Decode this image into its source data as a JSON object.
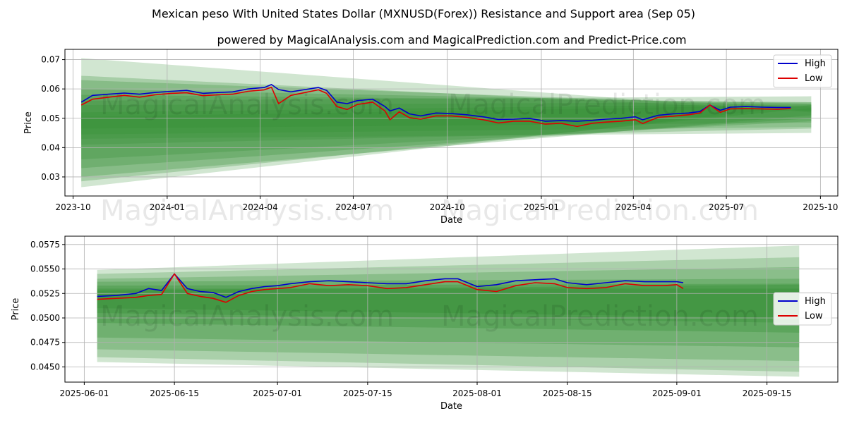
{
  "title": "Mexican peso With United States Dollar (MXNUSD(Forex)) Resistance and Support area (Sep 05)",
  "subtitle": "powered by MagicalAnalysis.com and MagicalPrediction.com and Predict-Price.com",
  "watermarks": [
    "MagicalAnalysis.com",
    "MagicalPrediction.com"
  ],
  "colors": {
    "high": "#0000cc",
    "low": "#dd0000",
    "band": "#2e8b2e",
    "grid": "#b0b0b0"
  },
  "chart_data": [
    {
      "type": "line",
      "xlabel": "Date",
      "ylabel": "Price",
      "xlim": [
        "2023-09-23",
        "2025-10-18"
      ],
      "ylim": [
        0.0235,
        0.0735
      ],
      "x_ticks": [
        "2023-10-01",
        "2024-01-01",
        "2024-04-01",
        "2024-07-01",
        "2024-10-01",
        "2025-01-01",
        "2025-04-01",
        "2025-07-01",
        "2025-10-01"
      ],
      "x_tick_labels": [
        "2023-10",
        "2024-01",
        "2024-04",
        "2024-07",
        "2024-10",
        "2025-01",
        "2025-04",
        "2025-07",
        "2025-10"
      ],
      "y_ticks": [
        0.03,
        0.04,
        0.05,
        0.06,
        0.07
      ],
      "y_tick_labels": [
        "0.03",
        "0.04",
        "0.05",
        "0.06",
        "0.07"
      ],
      "grid": true,
      "legend": "top-right",
      "series": [
        {
          "name": "High",
          "x": [
            "2023-10-09",
            "2023-10-20",
            "2023-11-05",
            "2023-11-20",
            "2023-12-05",
            "2023-12-20",
            "2024-01-05",
            "2024-01-20",
            "2024-02-05",
            "2024-02-20",
            "2024-03-05",
            "2024-03-20",
            "2024-04-05",
            "2024-04-12",
            "2024-04-19",
            "2024-05-01",
            "2024-05-15",
            "2024-05-28",
            "2024-06-05",
            "2024-06-15",
            "2024-06-25",
            "2024-07-05",
            "2024-07-20",
            "2024-08-01",
            "2024-08-06",
            "2024-08-15",
            "2024-08-25",
            "2024-09-05",
            "2024-09-20",
            "2024-10-05",
            "2024-10-20",
            "2024-11-05",
            "2024-11-20",
            "2024-12-05",
            "2024-12-20",
            "2025-01-05",
            "2025-01-20",
            "2025-02-05",
            "2025-02-20",
            "2025-03-05",
            "2025-03-20",
            "2025-04-03",
            "2025-04-10",
            "2025-04-25",
            "2025-05-10",
            "2025-05-25",
            "2025-06-05",
            "2025-06-15",
            "2025-06-25",
            "2025-07-05",
            "2025-07-20",
            "2025-08-05",
            "2025-08-20",
            "2025-09-02"
          ],
          "values": [
            0.0555,
            0.0578,
            0.0582,
            0.0586,
            0.0582,
            0.0588,
            0.0592,
            0.0595,
            0.0585,
            0.0588,
            0.059,
            0.06,
            0.0605,
            0.0615,
            0.0598,
            0.059,
            0.0598,
            0.0605,
            0.0595,
            0.0555,
            0.055,
            0.056,
            0.0565,
            0.054,
            0.0525,
            0.0535,
            0.0515,
            0.0508,
            0.0518,
            0.0516,
            0.0512,
            0.0505,
            0.0496,
            0.0497,
            0.05,
            0.049,
            0.0492,
            0.049,
            0.0493,
            0.0497,
            0.05,
            0.0505,
            0.0495,
            0.051,
            0.0515,
            0.0518,
            0.0523,
            0.0545,
            0.0527,
            0.0538,
            0.054,
            0.0538,
            0.0537,
            0.0537
          ]
        },
        {
          "name": "Low",
          "x": [
            "2023-10-09",
            "2023-10-20",
            "2023-11-05",
            "2023-11-20",
            "2023-12-05",
            "2023-12-20",
            "2024-01-05",
            "2024-01-20",
            "2024-02-05",
            "2024-02-20",
            "2024-03-05",
            "2024-03-20",
            "2024-04-05",
            "2024-04-12",
            "2024-04-19",
            "2024-05-01",
            "2024-05-15",
            "2024-05-28",
            "2024-06-05",
            "2024-06-15",
            "2024-06-25",
            "2024-07-05",
            "2024-07-20",
            "2024-08-01",
            "2024-08-06",
            "2024-08-15",
            "2024-08-25",
            "2024-09-05",
            "2024-09-20",
            "2024-10-05",
            "2024-10-20",
            "2024-11-05",
            "2024-11-20",
            "2024-12-05",
            "2024-12-20",
            "2025-01-05",
            "2025-01-20",
            "2025-02-05",
            "2025-02-20",
            "2025-03-05",
            "2025-03-20",
            "2025-04-03",
            "2025-04-10",
            "2025-04-25",
            "2025-05-10",
            "2025-05-25",
            "2025-06-05",
            "2025-06-15",
            "2025-06-25",
            "2025-07-05",
            "2025-07-20",
            "2025-08-05",
            "2025-08-20",
            "2025-09-02"
          ],
          "values": [
            0.0545,
            0.0565,
            0.0572,
            0.0578,
            0.0572,
            0.058,
            0.0585,
            0.0587,
            0.0577,
            0.058,
            0.0582,
            0.0592,
            0.0597,
            0.0606,
            0.055,
            0.0578,
            0.0588,
            0.0597,
            0.0585,
            0.054,
            0.053,
            0.0547,
            0.0555,
            0.0525,
            0.0495,
            0.0522,
            0.0502,
            0.0497,
            0.0508,
            0.0508,
            0.0503,
            0.0495,
            0.0484,
            0.049,
            0.049,
            0.048,
            0.0483,
            0.0472,
            0.0483,
            0.0487,
            0.049,
            0.0495,
            0.0482,
            0.0503,
            0.0507,
            0.0512,
            0.0518,
            0.0545,
            0.052,
            0.0532,
            0.0533,
            0.0532,
            0.0531,
            0.0533
          ]
        }
      ]
    },
    {
      "type": "line",
      "xlabel": "Date",
      "ylabel": "Price",
      "xlim": [
        "2025-05-29",
        "2025-09-26"
      ],
      "ylim": [
        0.04345,
        0.05835
      ],
      "x_ticks": [
        "2025-06-01",
        "2025-06-15",
        "2025-07-01",
        "2025-07-15",
        "2025-08-01",
        "2025-08-15",
        "2025-09-01",
        "2025-09-15"
      ],
      "x_tick_labels": [
        "2025-06-01",
        "2025-06-15",
        "2025-07-01",
        "2025-07-15",
        "2025-08-01",
        "2025-08-15",
        "2025-09-01",
        "2025-09-15"
      ],
      "y_ticks": [
        0.045,
        0.0475,
        0.05,
        0.0525,
        0.055,
        0.0575
      ],
      "y_tick_labels": [
        "0.0450",
        "0.0475",
        "0.0500",
        "0.0525",
        "0.0550",
        "0.0575"
      ],
      "grid": true,
      "legend": "right",
      "series": [
        {
          "name": "High",
          "x": [
            "2025-06-03",
            "2025-06-06",
            "2025-06-09",
            "2025-06-11",
            "2025-06-13",
            "2025-06-15",
            "2025-06-17",
            "2025-06-19",
            "2025-06-21",
            "2025-06-23",
            "2025-06-25",
            "2025-06-27",
            "2025-06-29",
            "2025-07-01",
            "2025-07-03",
            "2025-07-06",
            "2025-07-09",
            "2025-07-12",
            "2025-07-15",
            "2025-07-18",
            "2025-07-21",
            "2025-07-24",
            "2025-07-27",
            "2025-07-29",
            "2025-08-01",
            "2025-08-04",
            "2025-08-07",
            "2025-08-10",
            "2025-08-13",
            "2025-08-15",
            "2025-08-18",
            "2025-08-21",
            "2025-08-24",
            "2025-08-27",
            "2025-08-30",
            "2025-09-01",
            "2025-09-02"
          ],
          "values": [
            0.0522,
            0.0523,
            0.0525,
            0.053,
            0.0528,
            0.0545,
            0.053,
            0.0527,
            0.0526,
            0.0521,
            0.0527,
            0.053,
            0.0532,
            0.0533,
            0.0535,
            0.0537,
            0.0538,
            0.0537,
            0.0536,
            0.0535,
            0.0535,
            0.0538,
            0.054,
            0.054,
            0.0532,
            0.0534,
            0.0538,
            0.0539,
            0.054,
            0.0536,
            0.0534,
            0.0536,
            0.0538,
            0.0537,
            0.0537,
            0.0537,
            0.0536
          ]
        },
        {
          "name": "Low",
          "x": [
            "2025-06-03",
            "2025-06-06",
            "2025-06-09",
            "2025-06-11",
            "2025-06-13",
            "2025-06-15",
            "2025-06-17",
            "2025-06-19",
            "2025-06-21",
            "2025-06-23",
            "2025-06-25",
            "2025-06-27",
            "2025-06-29",
            "2025-07-01",
            "2025-07-03",
            "2025-07-06",
            "2025-07-09",
            "2025-07-12",
            "2025-07-15",
            "2025-07-18",
            "2025-07-21",
            "2025-07-24",
            "2025-07-27",
            "2025-07-29",
            "2025-08-01",
            "2025-08-04",
            "2025-08-07",
            "2025-08-10",
            "2025-08-13",
            "2025-08-15",
            "2025-08-18",
            "2025-08-21",
            "2025-08-24",
            "2025-08-27",
            "2025-08-30",
            "2025-09-01",
            "2025-09-02"
          ],
          "values": [
            0.0519,
            0.052,
            0.0521,
            0.0523,
            0.0524,
            0.0545,
            0.0525,
            0.0522,
            0.052,
            0.0516,
            0.0523,
            0.0527,
            0.0529,
            0.053,
            0.0531,
            0.0535,
            0.0533,
            0.0534,
            0.0533,
            0.053,
            0.0531,
            0.0534,
            0.0537,
            0.0537,
            0.0529,
            0.0527,
            0.0533,
            0.0536,
            0.0535,
            0.0531,
            0.053,
            0.0531,
            0.0535,
            0.0533,
            0.0533,
            0.0534,
            0.053
          ]
        }
      ]
    }
  ]
}
